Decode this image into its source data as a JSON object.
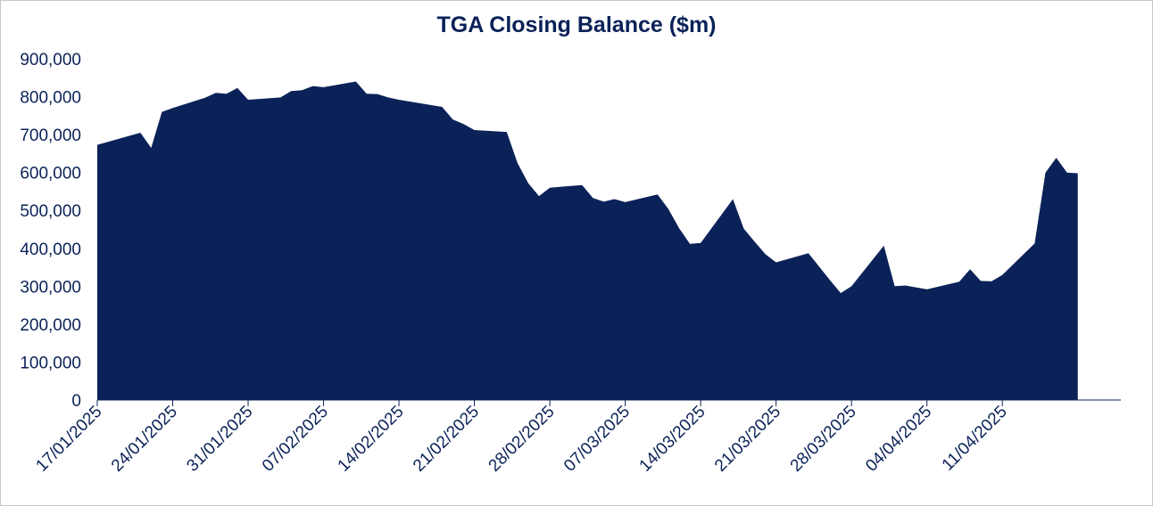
{
  "chart_data": {
    "type": "area",
    "title": "TGA Closing Balance ($m)",
    "xlabel": "",
    "ylabel": "",
    "ylim": [
      0,
      900000
    ],
    "yticks": [
      0,
      100000,
      200000,
      300000,
      400000,
      500000,
      600000,
      700000,
      800000,
      900000
    ],
    "ytick_labels": [
      "0",
      "100,000",
      "200,000",
      "300,000",
      "400,000",
      "500,000",
      "600,000",
      "700,000",
      "800,000",
      "900,000"
    ],
    "xlim": [
      "2025-01-17",
      "2025-04-22"
    ],
    "xtick_dates": [
      "2025-01-17",
      "2025-01-24",
      "2025-01-31",
      "2025-02-07",
      "2025-02-14",
      "2025-02-21",
      "2025-02-28",
      "2025-03-07",
      "2025-03-14",
      "2025-03-21",
      "2025-03-28",
      "2025-04-04",
      "2025-04-11"
    ],
    "xtick_labels": [
      "17/01/2025",
      "24/01/2025",
      "31/01/2025",
      "07/02/2025",
      "14/02/2025",
      "21/02/2025",
      "28/02/2025",
      "07/03/2025",
      "14/03/2025",
      "21/03/2025",
      "28/03/2025",
      "04/04/2025",
      "11/04/2025"
    ],
    "grid": false,
    "colors": {
      "area": "#0b2258",
      "text": "#0b2258"
    },
    "series": [
      {
        "x": [
          "2025-01-17",
          "2025-01-21",
          "2025-01-22",
          "2025-01-23",
          "2025-01-24",
          "2025-01-27",
          "2025-01-28",
          "2025-01-29",
          "2025-01-30",
          "2025-01-31",
          "2025-02-03",
          "2025-02-04",
          "2025-02-05",
          "2025-02-06",
          "2025-02-07",
          "2025-02-10",
          "2025-02-11",
          "2025-02-12",
          "2025-02-13",
          "2025-02-14",
          "2025-02-18",
          "2025-02-19",
          "2025-02-20",
          "2025-02-21",
          "2025-02-24",
          "2025-02-25",
          "2025-02-26",
          "2025-02-27",
          "2025-02-28",
          "2025-03-03",
          "2025-03-04",
          "2025-03-05",
          "2025-03-06",
          "2025-03-07",
          "2025-03-10",
          "2025-03-11",
          "2025-03-12",
          "2025-03-13",
          "2025-03-14",
          "2025-03-17",
          "2025-03-18",
          "2025-03-19",
          "2025-03-20",
          "2025-03-21",
          "2025-03-24",
          "2025-03-25",
          "2025-03-26",
          "2025-03-27",
          "2025-03-28",
          "2025-03-31",
          "2025-04-01",
          "2025-04-02",
          "2025-04-03",
          "2025-04-04",
          "2025-04-07",
          "2025-04-08",
          "2025-04-09",
          "2025-04-10",
          "2025-04-11",
          "2025-04-14",
          "2025-04-15",
          "2025-04-16",
          "2025-04-17",
          "2025-04-18"
        ],
        "values": [
          673000,
          705000,
          665000,
          760000,
          770000,
          797000,
          810000,
          808000,
          823000,
          792000,
          798000,
          815000,
          817000,
          828000,
          825000,
          840000,
          808000,
          807000,
          798000,
          792000,
          773000,
          740000,
          728000,
          712000,
          707000,
          625000,
          572000,
          538000,
          560000,
          567000,
          533000,
          523000,
          530000,
          522000,
          542000,
          504000,
          453000,
          412000,
          414000,
          530000,
          452000,
          418000,
          385000,
          363000,
          387000,
          352000,
          316000,
          282000,
          300000,
          407000,
          300000,
          302000,
          297000,
          292000,
          312000,
          345000,
          314000,
          313000,
          330000,
          413000,
          600000,
          639000,
          600000,
          598000
        ]
      }
    ]
  }
}
